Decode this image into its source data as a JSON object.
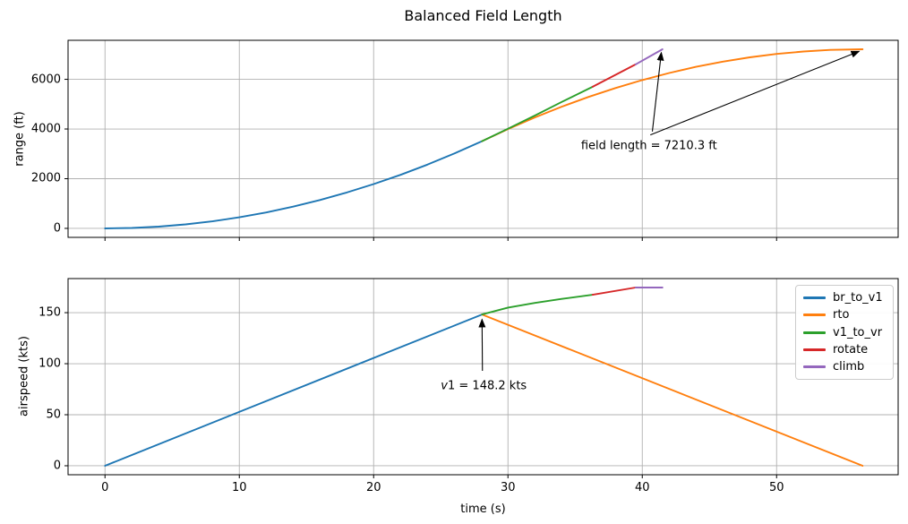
{
  "figure": {
    "grid_color": "#b0b0b0",
    "axis_color": "#000000",
    "background": "#ffffff"
  },
  "chart_data": [
    {
      "type": "line",
      "title": "Balanced Field Length",
      "ylabel": "range (ft)",
      "xlabel": "",
      "xlim": [
        -2.75,
        59.05
      ],
      "ylim": [
        -362,
        7570
      ],
      "xticks": [
        0,
        10,
        20,
        30,
        40,
        50
      ],
      "yticks": [
        0,
        2000,
        4000,
        6000
      ],
      "show_xtick_labels": false,
      "grid": true,
      "series": [
        {
          "name": "br_to_v1",
          "color": "#1f77b4",
          "x": [
            0,
            2,
            4,
            6,
            8,
            10,
            12,
            14,
            16,
            18,
            20,
            22,
            24,
            26,
            28.07
          ],
          "y": [
            0,
            18,
            71,
            160,
            285,
            446,
            641,
            873,
            1140,
            1443,
            1782,
            2156,
            2566,
            3012,
            3510
          ]
        },
        {
          "name": "rto",
          "color": "#ff7f0e",
          "x": [
            28.07,
            30,
            32,
            34,
            36,
            38,
            40,
            42,
            44,
            46,
            48,
            50,
            52,
            54,
            56.4
          ],
          "y": [
            3510,
            3997,
            4465,
            4897,
            5291,
            5649,
            5970,
            6254,
            6501,
            6711,
            6885,
            7021,
            7121,
            7183,
            7210.3
          ]
        },
        {
          "name": "v1_to_vr",
          "color": "#2ca02c",
          "x": [
            28.07,
            30,
            32,
            34,
            36.3
          ],
          "y": [
            3510,
            4010,
            4540,
            5090,
            5700
          ]
        },
        {
          "name": "rotate",
          "color": "#d62728",
          "x": [
            36.3,
            39.5
          ],
          "y": [
            5700,
            6600
          ]
        },
        {
          "name": "climb",
          "color": "#9467bd",
          "x": [
            39.5,
            41.5
          ],
          "y": [
            6600,
            7210.3
          ]
        }
      ],
      "annotations": [
        {
          "id": "field-length",
          "parts": [
            {
              "text": "field length = 7210.3 ft",
              "italic": false
            }
          ],
          "xy": [
            40.5,
            3330
          ],
          "arrows": [
            {
              "from": [
                40.75,
                3900
              ],
              "to": [
                41.42,
                7080
              ]
            },
            {
              "from": [
                40.6,
                3760
              ],
              "to": [
                56.15,
                7130
              ]
            }
          ]
        }
      ]
    },
    {
      "type": "line",
      "title": "",
      "ylabel": "airspeed (kts)",
      "xlabel": "time (s)",
      "xlim": [
        -2.75,
        59.05
      ],
      "ylim": [
        -8.8,
        183.4
      ],
      "xticks": [
        0,
        10,
        20,
        30,
        40,
        50
      ],
      "yticks": [
        0,
        50,
        100,
        150
      ],
      "show_xtick_labels": true,
      "grid": true,
      "series": [
        {
          "name": "br_to_v1",
          "color": "#1f77b4",
          "x": [
            0,
            28.07
          ],
          "y": [
            0,
            148.2
          ]
        },
        {
          "name": "rto",
          "color": "#ff7f0e",
          "x": [
            28.07,
            56.4
          ],
          "y": [
            148.2,
            0
          ]
        },
        {
          "name": "v1_to_vr",
          "color": "#2ca02c",
          "x": [
            28.07,
            30,
            32,
            34,
            36.3
          ],
          "y": [
            148.2,
            155,
            159.5,
            163.5,
            167.5
          ]
        },
        {
          "name": "rotate",
          "color": "#d62728",
          "x": [
            36.3,
            39.5
          ],
          "y": [
            167.5,
            174.6
          ]
        },
        {
          "name": "climb",
          "color": "#9467bd",
          "x": [
            39.5,
            41.5
          ],
          "y": [
            174.6,
            174.6
          ]
        }
      ],
      "legend": {
        "location": "upper right",
        "entries": [
          {
            "label": "br_to_v1",
            "color": "#1f77b4"
          },
          {
            "label": "rto",
            "color": "#ff7f0e"
          },
          {
            "label": "v1_to_vr",
            "color": "#2ca02c"
          },
          {
            "label": "rotate",
            "color": "#d62728"
          },
          {
            "label": "climb",
            "color": "#9467bd"
          }
        ]
      },
      "annotations": [
        {
          "id": "v1",
          "parts": [
            {
              "text": "v",
              "italic": true
            },
            {
              "text": "1 = 148.2 kts",
              "italic": false
            }
          ],
          "xy": [
            28.2,
            78
          ],
          "arrows": [
            {
              "from": [
                28.1,
                93
              ],
              "to": [
                28.07,
                143.5
              ]
            }
          ]
        }
      ]
    }
  ]
}
